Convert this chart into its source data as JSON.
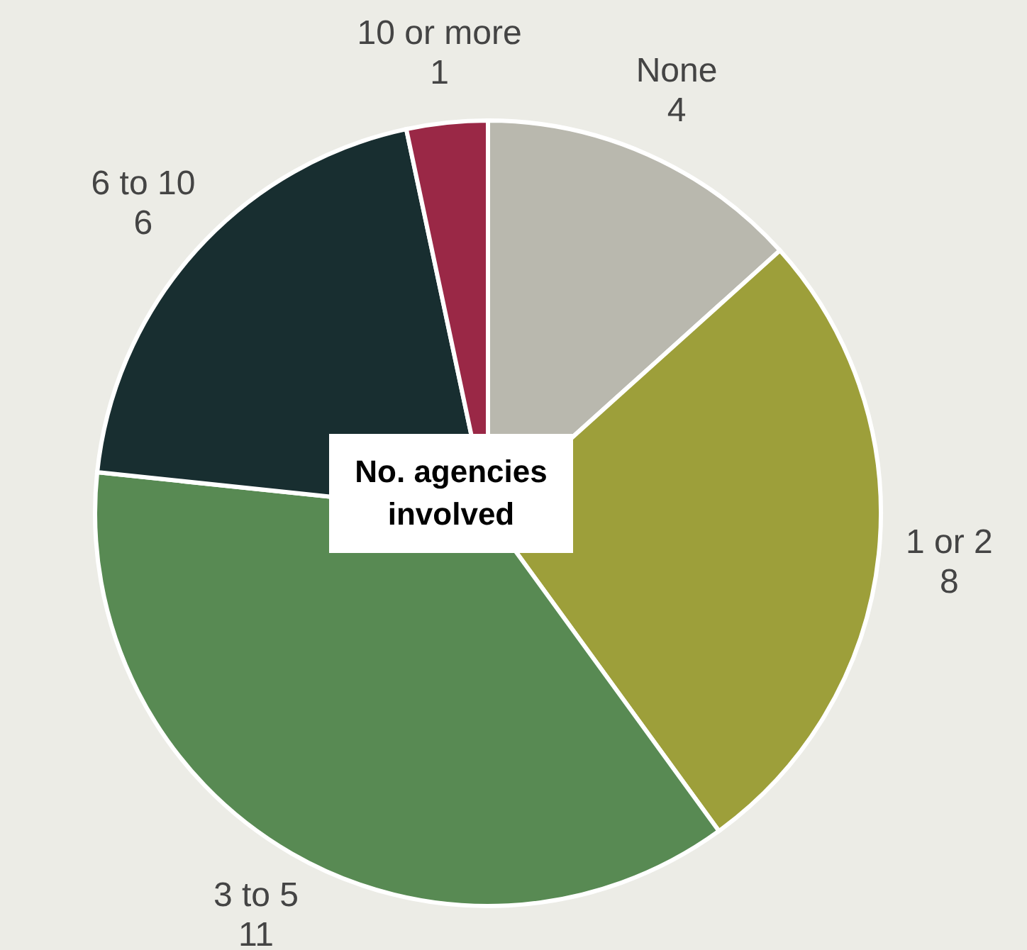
{
  "chart_data": {
    "type": "pie",
    "title": "No. agencies involved",
    "categories": [
      "None",
      "1 or 2",
      "3 to 5",
      "6 to 10",
      "10 or more"
    ],
    "values": [
      4,
      8,
      11,
      6,
      1
    ],
    "colors": [
      "#b9b8ae",
      "#9d9f3a",
      "#588a53",
      "#182e30",
      "#9a2846"
    ],
    "data_labels": true,
    "legend": false
  }
}
